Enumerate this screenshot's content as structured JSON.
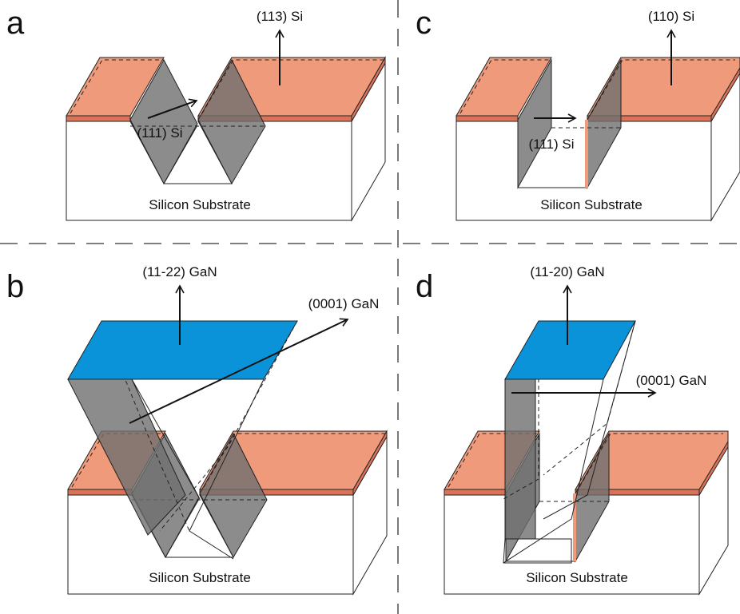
{
  "panels": [
    {
      "letter": "a",
      "substrate": "Silicon Substrate",
      "normal": "(113) Si",
      "facet": "(111) Si"
    },
    {
      "letter": "b",
      "substrate": "Silicon Substrate",
      "normal": "(11-22) GaN",
      "facet": "(0001) GaN"
    },
    {
      "letter": "c",
      "substrate": "Silicon Substrate",
      "normal": "(110) Si",
      "facet": "(111) Si"
    },
    {
      "letter": "d",
      "substrate": "Silicon Substrate",
      "normal": "(11-20) GaN",
      "facet": "(0001) GaN"
    }
  ]
}
